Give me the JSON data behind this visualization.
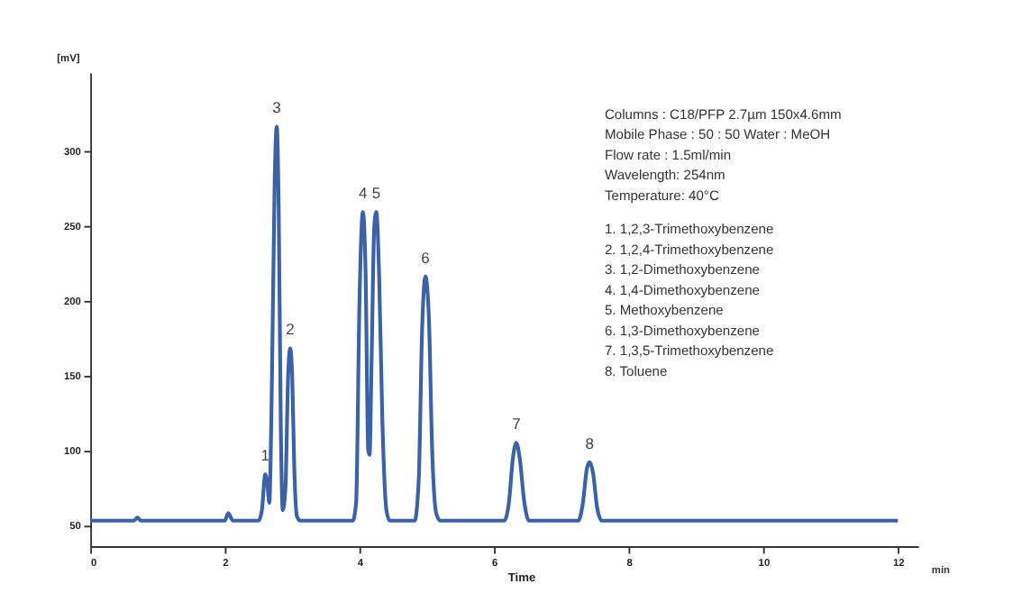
{
  "chart_data": {
    "type": "line",
    "xlabel": "Time",
    "ylabel": "[mV]",
    "xlim": [
      0,
      12.3
    ],
    "ylim": [
      36,
      352
    ],
    "xticks": [
      0,
      2,
      4,
      6,
      8,
      10,
      12
    ],
    "yticks": [
      50,
      100,
      150,
      200,
      250,
      300
    ],
    "grid": false,
    "marker": "none",
    "line_style": "solid",
    "x": [
      0,
      0.65,
      0.7,
      0.75,
      2.0,
      2.05,
      2.12,
      2.5,
      2.55,
      2.6,
      2.63,
      2.66,
      2.7,
      2.74,
      2.77,
      2.8,
      2.83,
      2.86,
      2.9,
      2.94,
      2.97,
      3.0,
      3.03,
      3.07,
      3.12,
      3.9,
      3.95,
      4.0,
      4.05,
      4.09,
      4.13,
      4.15,
      4.18,
      4.22,
      4.25,
      4.29,
      4.34,
      4.4,
      4.45,
      4.82,
      4.88,
      4.93,
      4.98,
      5.03,
      5.08,
      5.14,
      5.2,
      6.15,
      6.22,
      6.28,
      6.33,
      6.38,
      6.45,
      6.52,
      7.25,
      7.32,
      7.38,
      7.42,
      7.47,
      7.53,
      7.6,
      12
    ],
    "series": [
      {
        "color": "#3a62a7",
        "values": [
          53,
          53,
          55,
          53,
          53,
          58,
          53,
          53,
          60,
          84,
          78,
          65,
          150,
          280,
          316,
          260,
          120,
          60,
          75,
          150,
          168,
          150,
          90,
          56,
          53,
          53,
          65,
          200,
          259,
          220,
          100,
          97,
          160,
          250,
          259,
          220,
          120,
          60,
          53,
          53,
          80,
          180,
          216,
          190,
          100,
          58,
          53,
          53,
          65,
          95,
          105,
          95,
          65,
          53,
          53,
          65,
          88,
          92,
          85,
          62,
          53,
          53
        ]
      }
    ],
    "annotations": [
      "min",
      "Columns :  C18/PFP 2.7µm 150x4.6mm",
      "Mobile Phase : 50 : 50 Water : MeOH",
      "Flow rate :       1.5ml/min",
      "Wavelength:     254nm",
      "Temperature:    40°C",
      "1. 1,2,3-Trimethoxybenzene",
      "2. 1,2,4-Trimethoxybenzene",
      "3. 1,2-Dimethoxybenzene",
      "4. 1,4-Dimethoxybenzene",
      "5. Methoxybenzene",
      "6. 1,3-Dimethoxybenzene",
      "7. 1,3,5-Trimethoxybenzene",
      "8. Toluene",
      {
        "text": "1",
        "x": 2.6,
        "y": 84
      },
      {
        "text": "2",
        "x": 2.97,
        "y": 168
      },
      {
        "text": "3",
        "x": 2.77,
        "y": 316
      },
      {
        "text": "4",
        "x": 4.05,
        "y": 259
      },
      {
        "text": "5",
        "x": 4.25,
        "y": 259
      },
      {
        "text": "6",
        "x": 4.98,
        "y": 216
      },
      {
        "text": "7",
        "x": 6.33,
        "y": 105
      },
      {
        "text": "8",
        "x": 7.42,
        "y": 92
      }
    ]
  }
}
